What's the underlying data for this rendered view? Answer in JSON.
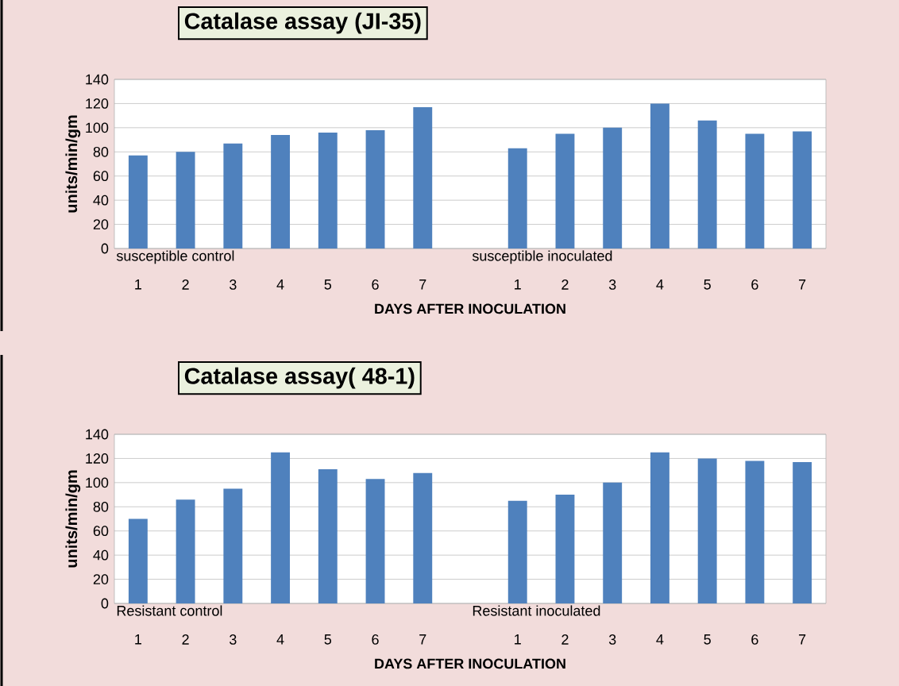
{
  "chart_data": [
    {
      "type": "bar",
      "title": "Catalase assay (JI-35)",
      "xlabel": "DAYS AFTER INOCULATION",
      "ylabel": "units/min/gm",
      "categories": [
        "1",
        "2",
        "3",
        "4",
        "5",
        "6",
        "7",
        null,
        "1",
        "2",
        "3",
        "4",
        "5",
        "6",
        "7"
      ],
      "values": [
        77,
        80,
        87,
        94,
        96,
        98,
        117,
        null,
        83,
        95,
        100,
        120,
        106,
        95,
        97
      ],
      "color": "#4f81bd",
      "ylim": [
        0,
        140
      ],
      "yticks": [
        0,
        20,
        40,
        60,
        80,
        100,
        120,
        140
      ],
      "grid": "y",
      "annotations": [
        "susceptible control",
        "susceptible inoculated"
      ]
    },
    {
      "type": "bar",
      "title": "Catalase  assay( 48-1)",
      "xlabel": "DAYS AFTER INOCULATION",
      "ylabel": "units/min/gm",
      "categories": [
        "1",
        "2",
        "3",
        "4",
        "5",
        "6",
        "7",
        null,
        "1",
        "2",
        "3",
        "4",
        "5",
        "6",
        "7"
      ],
      "values": [
        70,
        86,
        95,
        125,
        111,
        103,
        108,
        null,
        85,
        90,
        100,
        125,
        120,
        118,
        117
      ],
      "color": "#4f81bd",
      "ylim": [
        0,
        140
      ],
      "yticks": [
        0,
        20,
        40,
        60,
        80,
        100,
        120,
        140
      ],
      "grid": "y",
      "annotations": [
        "Resistant control",
        "Resistant inoculated"
      ]
    }
  ]
}
